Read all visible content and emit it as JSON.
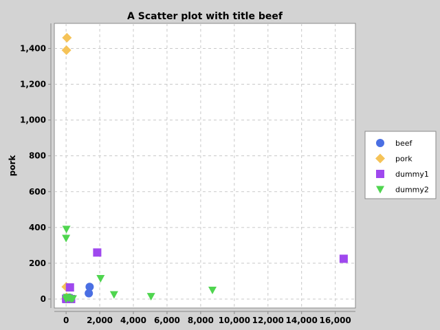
{
  "chart_data": {
    "type": "scatter",
    "title": "A Scatter plot with title beef",
    "xlabel": "",
    "ylabel": "pork",
    "xlim": [
      -700,
      17200
    ],
    "ylim": [
      -50,
      1540
    ],
    "x_ticks": [
      0,
      2000,
      4000,
      6000,
      8000,
      10000,
      12000,
      14000,
      16000
    ],
    "x_tick_labels": [
      "0",
      "2,000",
      "4,000",
      "6,000",
      "8,000",
      "10,000",
      "12,000",
      "14,000",
      "16,000"
    ],
    "y_ticks": [
      0,
      200,
      400,
      600,
      800,
      1000,
      1200,
      1400
    ],
    "y_tick_labels": [
      "0",
      "200",
      "400",
      "600",
      "800",
      "1,000",
      "1,200",
      "1,400"
    ],
    "grid": true,
    "legend_position": "right",
    "series": [
      {
        "name": "beef",
        "marker": "circle",
        "color": "#4a6fe3",
        "points": [
          [
            1400,
            68
          ],
          [
            1350,
            32
          ],
          [
            10,
            5
          ],
          [
            50,
            2
          ],
          [
            120,
            0
          ],
          [
            200,
            8
          ],
          [
            300,
            3
          ],
          [
            0,
            0
          ]
        ]
      },
      {
        "name": "pork",
        "marker": "diamond",
        "color": "#f5c358",
        "points": [
          [
            50,
            1460
          ],
          [
            20,
            1390
          ],
          [
            10,
            68
          ],
          [
            30,
            10
          ],
          [
            0,
            2
          ]
        ]
      },
      {
        "name": "dummy1",
        "marker": "square",
        "color": "#9f48ee",
        "points": [
          [
            16500,
            225
          ],
          [
            1850,
            260
          ],
          [
            230,
            65
          ],
          [
            0,
            2
          ],
          [
            80,
            0
          ],
          [
            150,
            5
          ],
          [
            300,
            0
          ],
          [
            20,
            0
          ]
        ]
      },
      {
        "name": "dummy2",
        "marker": "triangle-down",
        "color": "#4fd54f",
        "points": [
          [
            20,
            390
          ],
          [
            0,
            340
          ],
          [
            2050,
            115
          ],
          [
            2850,
            25
          ],
          [
            5050,
            15
          ],
          [
            8700,
            50
          ],
          [
            60,
            10
          ],
          [
            150,
            5
          ],
          [
            300,
            0
          ],
          [
            0,
            0
          ],
          [
            400,
            2
          ]
        ]
      }
    ]
  }
}
